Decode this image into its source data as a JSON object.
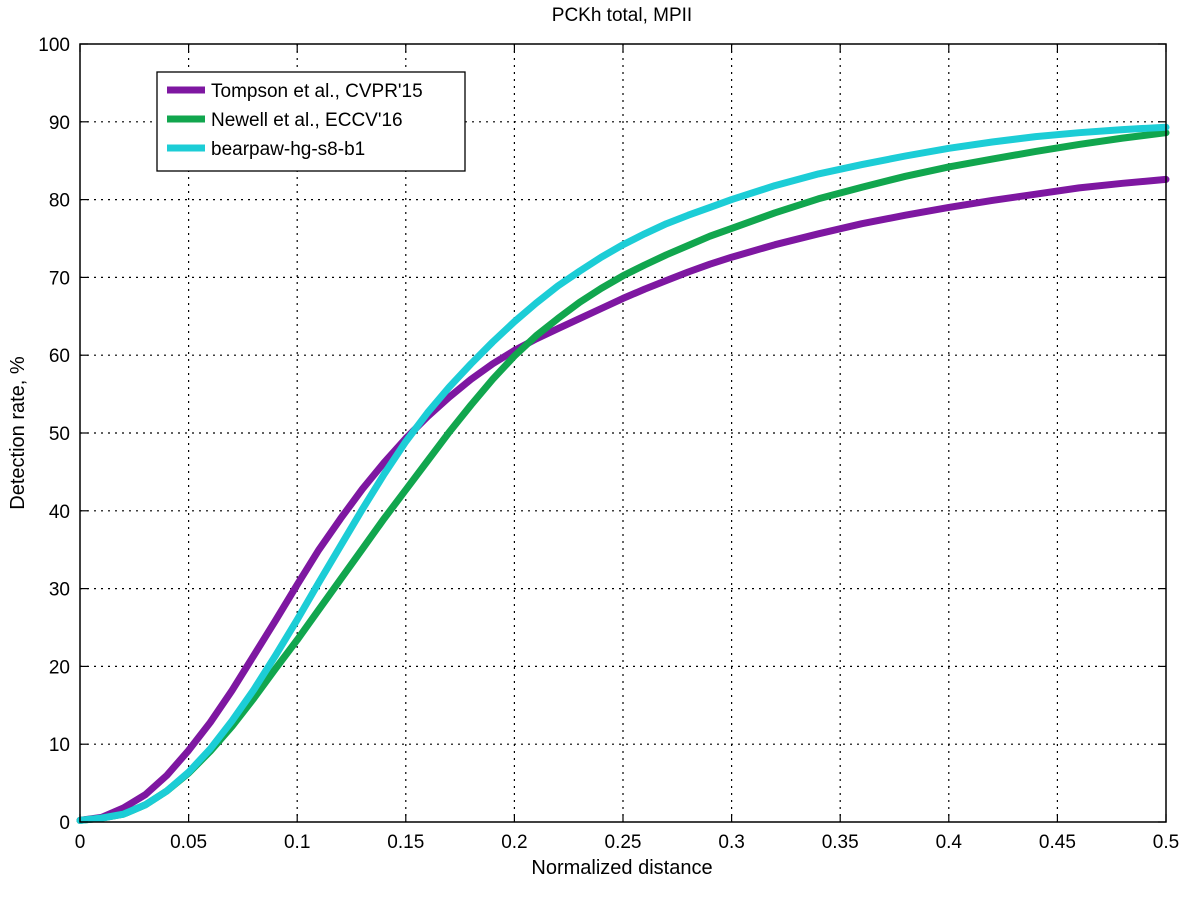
{
  "chart_data": {
    "type": "line",
    "title": "PCKh total, MPII",
    "xlabel": "Normalized distance",
    "ylabel": "Detection rate, %",
    "xlim": [
      0,
      0.5
    ],
    "ylim": [
      0,
      100
    ],
    "xticks": [
      0,
      0.05,
      0.1,
      0.15,
      0.2,
      0.25,
      0.3,
      0.35,
      0.4,
      0.45,
      0.5
    ],
    "xtick_labels": [
      "0",
      "0.05",
      "0.1",
      "0.15",
      "0.2",
      "0.25",
      "0.3",
      "0.35",
      "0.4",
      "0.45",
      "0.5"
    ],
    "yticks": [
      0,
      10,
      20,
      30,
      40,
      50,
      60,
      70,
      80,
      90,
      100
    ],
    "ytick_labels": [
      "0",
      "10",
      "20",
      "30",
      "40",
      "50",
      "60",
      "70",
      "80",
      "90",
      "100"
    ],
    "grid": true,
    "legend_position": "top-left",
    "series": [
      {
        "name": "Tompson et al., CVPR'15",
        "color": "#7e17a1",
        "x": [
          0,
          0.01,
          0.02,
          0.03,
          0.04,
          0.05,
          0.06,
          0.07,
          0.08,
          0.09,
          0.1,
          0.11,
          0.12,
          0.13,
          0.14,
          0.15,
          0.16,
          0.17,
          0.18,
          0.19,
          0.2,
          0.21,
          0.22,
          0.23,
          0.24,
          0.25,
          0.26,
          0.27,
          0.28,
          0.29,
          0.3,
          0.32,
          0.34,
          0.36,
          0.38,
          0.4,
          0.42,
          0.44,
          0.46,
          0.48,
          0.5
        ],
        "y": [
          0.2,
          0.6,
          1.8,
          3.5,
          6.0,
          9.2,
          12.8,
          16.9,
          21.4,
          25.9,
          30.5,
          35.0,
          39.0,
          42.8,
          46.2,
          49.3,
          52.1,
          54.6,
          56.9,
          58.9,
          60.6,
          62.1,
          63.4,
          64.7,
          66.0,
          67.3,
          68.5,
          69.6,
          70.7,
          71.7,
          72.6,
          74.2,
          75.6,
          76.9,
          78.0,
          79.0,
          79.9,
          80.7,
          81.5,
          82.1,
          82.6
        ]
      },
      {
        "name": "Newell et al., ECCV'16",
        "color": "#11a64e",
        "x": [
          0,
          0.01,
          0.02,
          0.03,
          0.04,
          0.05,
          0.06,
          0.07,
          0.08,
          0.09,
          0.1,
          0.11,
          0.12,
          0.13,
          0.14,
          0.15,
          0.16,
          0.17,
          0.18,
          0.19,
          0.2,
          0.21,
          0.22,
          0.23,
          0.24,
          0.25,
          0.26,
          0.27,
          0.28,
          0.29,
          0.3,
          0.32,
          0.34,
          0.36,
          0.38,
          0.4,
          0.42,
          0.44,
          0.46,
          0.48,
          0.5
        ],
        "y": [
          0.2,
          0.5,
          1.0,
          2.2,
          4.0,
          6.3,
          9.1,
          12.3,
          15.9,
          19.7,
          23.4,
          27.3,
          31.2,
          35.1,
          39.0,
          42.7,
          46.4,
          50.1,
          53.6,
          56.9,
          59.9,
          62.5,
          64.7,
          66.8,
          68.6,
          70.2,
          71.6,
          72.9,
          74.1,
          75.3,
          76.3,
          78.3,
          80.1,
          81.6,
          83.0,
          84.2,
          85.2,
          86.2,
          87.1,
          87.9,
          88.6
        ]
      },
      {
        "name": "bearpaw-hg-s8-b1",
        "color": "#1ccdd6",
        "x": [
          0,
          0.01,
          0.02,
          0.03,
          0.04,
          0.05,
          0.06,
          0.07,
          0.08,
          0.09,
          0.1,
          0.11,
          0.12,
          0.13,
          0.14,
          0.15,
          0.16,
          0.17,
          0.18,
          0.19,
          0.2,
          0.21,
          0.22,
          0.23,
          0.24,
          0.25,
          0.26,
          0.27,
          0.28,
          0.29,
          0.3,
          0.32,
          0.34,
          0.36,
          0.38,
          0.4,
          0.42,
          0.44,
          0.46,
          0.48,
          0.5
        ],
        "y": [
          0.2,
          0.5,
          1.0,
          2.2,
          4.0,
          6.4,
          9.4,
          13.0,
          17.0,
          21.4,
          26.0,
          30.8,
          35.5,
          40.2,
          44.7,
          48.9,
          52.6,
          55.9,
          58.9,
          61.7,
          64.3,
          66.7,
          68.9,
          70.8,
          72.6,
          74.2,
          75.6,
          76.9,
          78.0,
          79.0,
          80.0,
          81.8,
          83.3,
          84.5,
          85.6,
          86.6,
          87.4,
          88.1,
          88.6,
          89.0,
          89.3
        ]
      }
    ]
  }
}
